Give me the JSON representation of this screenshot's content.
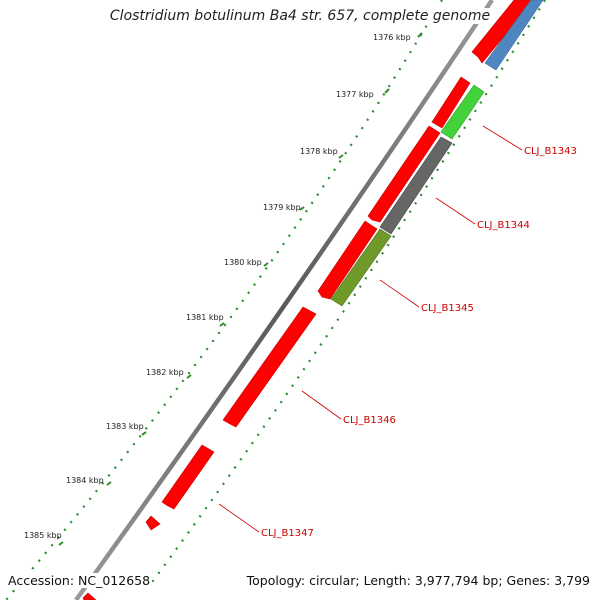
{
  "title": "Clostridium botulinum Ba4 str. 657, complete genome",
  "footer": {
    "accession": "Accession: NC_012658",
    "summary": "Topology: circular; Length: 3,977,794 bp; Genes: 3,799"
  },
  "colors": {
    "forward_cds": "#ff0000",
    "reverse_cds_blue": "#4f86c0",
    "reverse_cds_green": "#44d23a",
    "reverse_cds_gray": "#666666",
    "reverse_cds_olive": "#6f9a2a",
    "backbone": "#777777",
    "ruler": "#2e8b2e",
    "label": "#cc0000"
  },
  "kbp_labels": [
    "1376 kbp",
    "1377 kbp",
    "1378 kbp",
    "1379 kbp",
    "1380 kbp",
    "1381 kbp",
    "1382 kbp",
    "1383 kbp",
    "1384 kbp",
    "1385 kbp"
  ],
  "genes": [
    {
      "locus": "CLJ_B1343",
      "strand": "reverse",
      "color": "green"
    },
    {
      "locus": "CLJ_B1344",
      "strand": "reverse",
      "color": "gray"
    },
    {
      "locus": "CLJ_B1345",
      "strand": "reverse",
      "color": "olive"
    },
    {
      "locus": "CLJ_B1346",
      "strand": "forward",
      "color": "red"
    },
    {
      "locus": "CLJ_B1347",
      "strand": "forward",
      "color": "red"
    }
  ]
}
